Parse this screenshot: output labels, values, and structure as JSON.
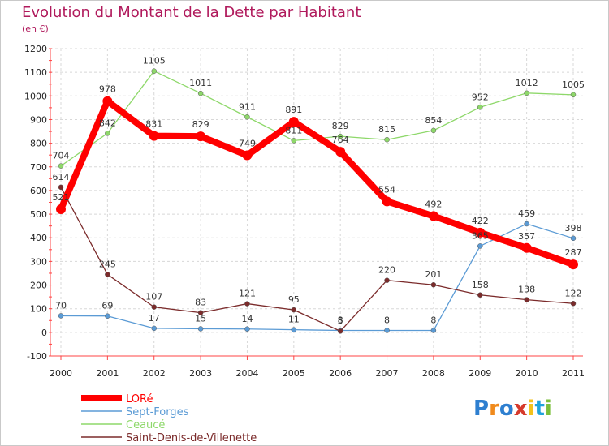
{
  "title": "Evolution du Montant de la Dette par Habitant",
  "subtitle": "(en €)",
  "logo_text": "Proxiti",
  "chart_data": {
    "type": "line",
    "x": [
      "2000",
      "2001",
      "2002",
      "2003",
      "2004",
      "2005",
      "2006",
      "2007",
      "2008",
      "2009",
      "2010",
      "2011"
    ],
    "ylim": [
      -100,
      1200
    ],
    "yticks": [
      -100,
      0,
      100,
      200,
      300,
      400,
      500,
      600,
      700,
      800,
      900,
      1000,
      1100,
      1200
    ],
    "grid": true,
    "legend": "bottom-left",
    "series": [
      {
        "name": "LORé",
        "color": "#ff0000",
        "values": [
          521,
          978,
          831,
          829,
          749,
          891,
          764,
          554,
          492,
          422,
          357,
          287
        ]
      },
      {
        "name": "Sept-Forges",
        "color": "#5b9bd5",
        "values": [
          70,
          69,
          17,
          15,
          14,
          11,
          8,
          8,
          8,
          365,
          459,
          398
        ]
      },
      {
        "name": "Ceaucé",
        "color": "#8ed86a",
        "values": [
          704,
          842,
          1105,
          1011,
          911,
          811,
          829,
          815,
          854,
          952,
          1012,
          1005
        ]
      },
      {
        "name": "Saint-Denis-de-Villenette",
        "color": "#7b2b2b",
        "values": [
          614,
          245,
          107,
          83,
          121,
          95,
          5,
          220,
          201,
          158,
          138,
          122
        ]
      }
    ]
  }
}
